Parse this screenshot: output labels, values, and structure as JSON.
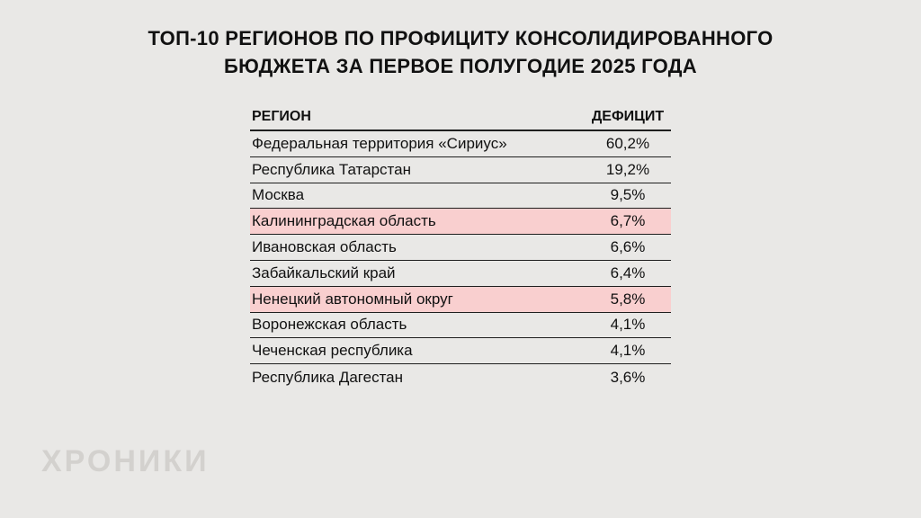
{
  "title": {
    "line1": "ТОП-10 РЕГИОНОВ ПО ПРОФИЦИТУ КОНСОЛИДИРОВАННОГО",
    "line2": "БЮДЖЕТА ЗА ПЕРВОЕ ПОЛУГОДИЕ 2025 ГОДА"
  },
  "table": {
    "headers": {
      "region": "РЕГИОН",
      "value": "ДЕФИЦИТ"
    },
    "rows": [
      {
        "region": "Федеральная территория «Сириус»",
        "value": "60,2%"
      },
      {
        "region": "Республика Татарстан",
        "value": "19,2%"
      },
      {
        "region": "Москва",
        "value": "9,5%"
      },
      {
        "region": "Калининградская область",
        "value": "6,7%"
      },
      {
        "region": "Ивановская область",
        "value": "6,6%"
      },
      {
        "region": "Забайкальский край",
        "value": "6,4%"
      },
      {
        "region": "Ненецкий автономный округ",
        "value": "5,8%"
      },
      {
        "region": "Воронежская область",
        "value": "4,1%"
      },
      {
        "region": "Чеченская республика",
        "value": "4,1%"
      },
      {
        "region": "Республика Дагестан",
        "value": "3,6%"
      }
    ],
    "highlighted_rows": [
      3,
      6
    ]
  },
  "watermark": "ХРОНИКИ",
  "colors": {
    "background": "#e9e8e6",
    "highlight": "#f9cfcf",
    "text": "#111111",
    "line": "#1f1f1f",
    "watermark": "#d3d1ce"
  },
  "chart_data": {
    "type": "table",
    "title": "ТОП-10 РЕГИОНОВ ПО ПРОФИЦИТУ КОНСОЛИДИРОВАННОГО БЮДЖЕТА ЗА ПЕРВОЕ ПОЛУГОДИЕ 2025 ГОДА",
    "columns": [
      "РЕГИОН",
      "ДЕФИЦИТ"
    ],
    "categories": [
      "Федеральная территория «Сириус»",
      "Республика Татарстан",
      "Москва",
      "Калининградская область",
      "Ивановская область",
      "Забайкальский край",
      "Ненецкий автономный округ",
      "Воронежская область",
      "Чеченская республика",
      "Республика Дагестан"
    ],
    "values": [
      60.2,
      19.2,
      9.5,
      6.7,
      6.6,
      6.4,
      5.8,
      4.1,
      4.1,
      3.6
    ],
    "value_unit": "%",
    "highlighted_categories": [
      "Калининградская область",
      "Ненецкий автономный округ"
    ]
  }
}
